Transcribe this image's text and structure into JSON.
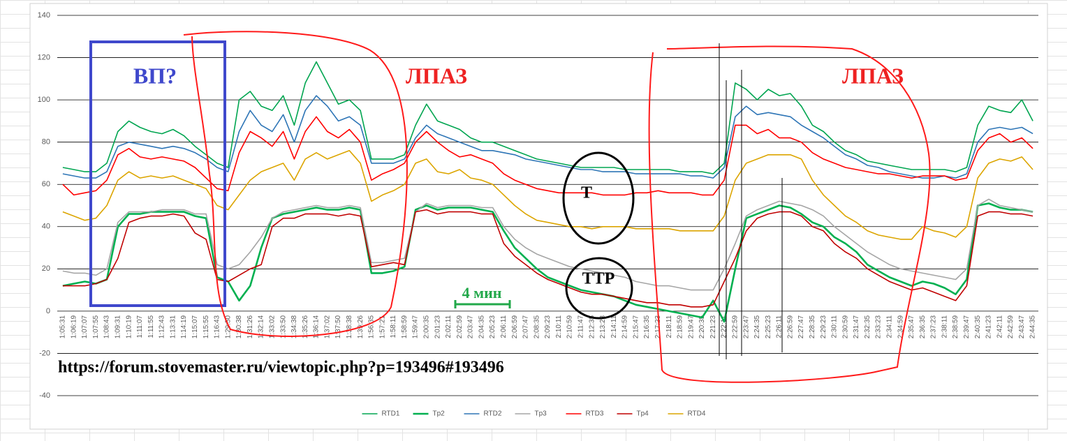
{
  "chart_data": {
    "type": "line",
    "categories": [
      "1:05:31",
      "1:06:19",
      "1:07:07",
      "1:07:55",
      "1:08:43",
      "1:09:31",
      "1:10:19",
      "1:11:07",
      "1:11:55",
      "1:12:43",
      "1:13:31",
      "1:14:19",
      "1:15:07",
      "1:15:55",
      "1:16:43",
      "1:29:50",
      "1:30:38",
      "1:31:26",
      "1:32:14",
      "1:33:02",
      "1:33:50",
      "1:34:38",
      "1:35:26",
      "1:36:14",
      "1:37:02",
      "1:37:50",
      "1:38:38",
      "1:39:26",
      "1:56:35",
      "1:57:21",
      "1:58:11",
      "1:58:59",
      "1:59:47",
      "2:00:35",
      "2:01:23",
      "2:02:11",
      "2:02:59",
      "2:03:47",
      "2:04:35",
      "2:05:23",
      "2:06:11",
      "2:06:59",
      "2:07:47",
      "2:08:35",
      "2:09:23",
      "2:10:11",
      "2:10:59",
      "2:11:47",
      "2:12:35",
      "2:13:23",
      "2:14:11",
      "2:14:59",
      "2:15:47",
      "2:16:35",
      "2:17:23",
      "2:18:11",
      "2:18:59",
      "2:19:47",
      "2:20:35",
      "2:21:23",
      "2:22:11",
      "2:22:59",
      "2:23:47",
      "2:24:35",
      "2:25:23",
      "2:26:11",
      "2:26:59",
      "2:27:47",
      "2:28:35",
      "2:29:23",
      "2:30:11",
      "2:30:59",
      "2:31:47",
      "2:32:35",
      "2:33:23",
      "2:34:11",
      "2:34:59",
      "2:35:47",
      "2:36:35",
      "2:37:23",
      "2:38:11",
      "2:38:59",
      "2:39:47",
      "2:40:35",
      "2:41:23",
      "2:42:11",
      "2:42:59",
      "2:43:47",
      "2:44:35"
    ],
    "series": [
      {
        "name": "RTD1",
        "color": "#00a550",
        "values": [
          68,
          67,
          66,
          66,
          70,
          85,
          90,
          87,
          85,
          84,
          86,
          83,
          78,
          74,
          70,
          68,
          100,
          104,
          97,
          95,
          102,
          88,
          108,
          118,
          108,
          98,
          100,
          95,
          72,
          72,
          72,
          74,
          88,
          98,
          90,
          88,
          86,
          82,
          80,
          80,
          78,
          76,
          74,
          72,
          71,
          70,
          69,
          68,
          68,
          68,
          68,
          67,
          67,
          67,
          67,
          67,
          66,
          66,
          66,
          65,
          70,
          108,
          105,
          100,
          105,
          102,
          103,
          97,
          88,
          85,
          80,
          76,
          74,
          71,
          70,
          69,
          68,
          67,
          67,
          67,
          67,
          66,
          68,
          88,
          97,
          95,
          94,
          100,
          90
        ]
      },
      {
        "name": "Tp2",
        "color": "#00b050",
        "values": [
          12,
          13,
          14,
          13,
          15,
          40,
          46,
          46,
          47,
          47,
          47,
          47,
          45,
          44,
          16,
          14,
          5,
          12,
          30,
          44,
          46,
          47,
          48,
          49,
          48,
          48,
          49,
          48,
          18,
          18,
          19,
          21,
          48,
          50,
          48,
          49,
          49,
          49,
          48,
          47,
          38,
          30,
          25,
          20,
          16,
          14,
          12,
          10,
          9,
          8,
          7,
          5,
          3,
          2,
          1,
          0,
          -1,
          -2,
          -3,
          5,
          -5,
          20,
          44,
          46,
          48,
          50,
          49,
          46,
          42,
          40,
          35,
          32,
          28,
          22,
          19,
          16,
          14,
          12,
          14,
          13,
          11,
          8,
          15,
          50,
          51,
          49,
          48,
          48,
          47
        ]
      },
      {
        "name": "RTD2",
        "color": "#2e75b6",
        "values": [
          65,
          64,
          63,
          63,
          66,
          78,
          80,
          79,
          78,
          77,
          78,
          77,
          75,
          72,
          68,
          66,
          85,
          95,
          88,
          85,
          93,
          80,
          95,
          102,
          97,
          90,
          92,
          88,
          70,
          70,
          70,
          72,
          82,
          88,
          84,
          82,
          80,
          78,
          76,
          76,
          75,
          74,
          72,
          71,
          70,
          69,
          68,
          67,
          67,
          66,
          66,
          66,
          65,
          65,
          65,
          65,
          65,
          64,
          64,
          63,
          68,
          92,
          97,
          93,
          94,
          93,
          92,
          88,
          85,
          82,
          78,
          74,
          72,
          69,
          68,
          66,
          65,
          64,
          63,
          63,
          64,
          63,
          65,
          80,
          86,
          87,
          86,
          87,
          84
        ]
      },
      {
        "name": "Tp3",
        "color": "#a5a5a5",
        "values": [
          19,
          18,
          18,
          17,
          20,
          42,
          47,
          47,
          47,
          48,
          48,
          48,
          46,
          46,
          22,
          20,
          22,
          28,
          35,
          44,
          47,
          48,
          49,
          50,
          49,
          49,
          50,
          49,
          23,
          23,
          24,
          25,
          47,
          51,
          49,
          50,
          50,
          50,
          49,
          49,
          40,
          34,
          30,
          27,
          25,
          23,
          21,
          20,
          19,
          18,
          17,
          16,
          14,
          13,
          12,
          12,
          11,
          10,
          10,
          10,
          20,
          32,
          45,
          48,
          50,
          52,
          51,
          50,
          48,
          45,
          40,
          36,
          32,
          28,
          25,
          22,
          20,
          19,
          18,
          17,
          16,
          15,
          20,
          50,
          53,
          50,
          49,
          48,
          47
        ]
      },
      {
        "name": "RTD3",
        "color": "#ff0000",
        "values": [
          60,
          55,
          56,
          57,
          62,
          74,
          77,
          73,
          72,
          73,
          72,
          71,
          68,
          63,
          58,
          57,
          75,
          85,
          82,
          78,
          85,
          72,
          85,
          92,
          85,
          82,
          86,
          80,
          62,
          65,
          67,
          70,
          80,
          85,
          80,
          76,
          73,
          74,
          72,
          70,
          65,
          62,
          60,
          58,
          57,
          56,
          56,
          56,
          56,
          55,
          55,
          55,
          56,
          56,
          57,
          56,
          56,
          56,
          55,
          55,
          62,
          88,
          88,
          84,
          86,
          82,
          82,
          80,
          75,
          72,
          70,
          68,
          67,
          66,
          65,
          65,
          64,
          63,
          64,
          64,
          64,
          62,
          63,
          76,
          82,
          84,
          80,
          82,
          77
        ]
      },
      {
        "name": "Tp4",
        "color": "#c00000",
        "values": [
          12,
          12,
          12,
          13,
          15,
          25,
          42,
          44,
          45,
          45,
          46,
          45,
          37,
          34,
          15,
          14,
          17,
          20,
          22,
          40,
          44,
          44,
          46,
          46,
          46,
          45,
          46,
          45,
          21,
          22,
          23,
          22,
          47,
          48,
          46,
          47,
          47,
          47,
          46,
          46,
          32,
          26,
          22,
          18,
          15,
          13,
          11,
          9,
          8,
          8,
          7,
          6,
          5,
          4,
          4,
          3,
          3,
          2,
          2,
          3,
          14,
          25,
          38,
          44,
          46,
          47,
          47,
          45,
          40,
          38,
          32,
          28,
          25,
          20,
          17,
          14,
          12,
          10,
          11,
          9,
          7,
          5,
          12,
          45,
          47,
          47,
          46,
          46,
          45
        ]
      },
      {
        "name": "RTD4",
        "color": "#dca500",
        "values": [
          47,
          45,
          43,
          44,
          50,
          62,
          66,
          63,
          64,
          63,
          64,
          62,
          60,
          58,
          50,
          48,
          55,
          62,
          66,
          68,
          70,
          62,
          72,
          75,
          72,
          74,
          76,
          70,
          52,
          55,
          57,
          60,
          70,
          72,
          66,
          65,
          67,
          63,
          62,
          60,
          55,
          50,
          46,
          43,
          42,
          41,
          40,
          40,
          39,
          40,
          40,
          40,
          39,
          39,
          39,
          39,
          38,
          38,
          38,
          38,
          45,
          62,
          70,
          72,
          74,
          74,
          74,
          72,
          62,
          55,
          50,
          45,
          42,
          38,
          36,
          35,
          34,
          34,
          40,
          38,
          37,
          35,
          40,
          63,
          70,
          72,
          71,
          73,
          67
        ]
      }
    ],
    "ylim": [
      -40,
      140
    ],
    "yticks": [
      -40,
      -20,
      0,
      20,
      40,
      60,
      80,
      100,
      120,
      140
    ],
    "grid": true,
    "legend": "bottom",
    "annotations": [
      "ВП?",
      "ЛПАЗ",
      "ЛПАЗ",
      "Т",
      "ТТР",
      "4 мин",
      "https://forum.stovemaster.ru/viewtopic.php?p=193496#193496"
    ]
  }
}
